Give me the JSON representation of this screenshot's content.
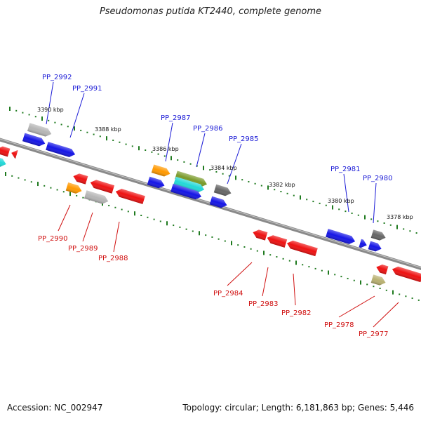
{
  "title": "Pseudomonas putida KT2440, complete genome",
  "footer": {
    "accession": "Accession: NC_002947",
    "summary": "Topology: circular; Length: 6,181,863 bp; Genes: 5,446"
  },
  "colors": {
    "backbone": "#8a8a8a",
    "tick": "#1f7a1f",
    "label_forward": "#1a1ad6",
    "label_reverse": "#d01010",
    "blue": "#1515e6",
    "red": "#ee1111",
    "orange": "#ff9900",
    "gray": "#b5b5b5",
    "darkgray": "#666666",
    "cyan": "#22d8d8",
    "olive": "#7a9a2a",
    "khaki": "#b8b070"
  },
  "position_labels": [
    "3390 kbp",
    "3388 kbp",
    "3386 kbp",
    "3384 kbp",
    "3382 kbp",
    "3380 kbp",
    "3378 kbp"
  ],
  "gene_labels": {
    "forward": [
      "PP_2992",
      "PP_2991",
      "PP_2987",
      "PP_2986",
      "PP_2985",
      "PP_2981",
      "PP_2980"
    ],
    "reverse": [
      "PP_2990",
      "PP_2989",
      "PP_2988",
      "PP_2984",
      "PP_2983",
      "PP_2982",
      "PP_2978",
      "PP_2977"
    ]
  }
}
